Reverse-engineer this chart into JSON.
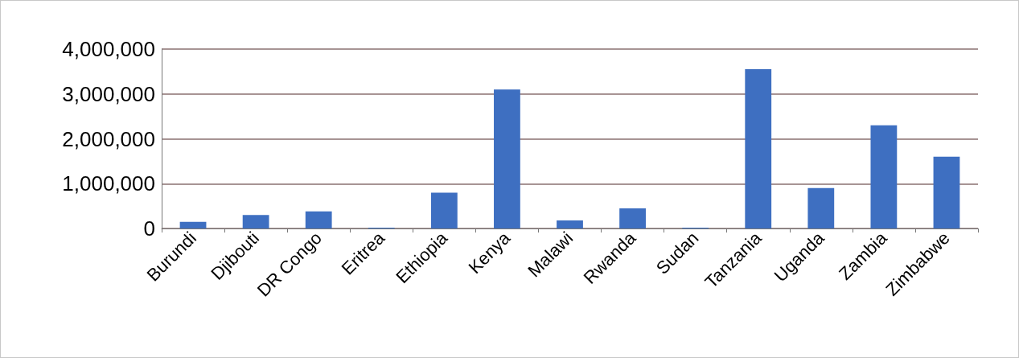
{
  "chart_data": {
    "type": "bar",
    "categories": [
      "Burundi",
      "Djibouti",
      "DR Congo",
      "Eritrea",
      "Ethiopia",
      "Kenya",
      "Malawi",
      "Rwanda",
      "Sudan",
      "Tanzania",
      "Uganda",
      "Zambia",
      "Zimbabwe"
    ],
    "values": [
      150000,
      300000,
      380000,
      20000,
      800000,
      3100000,
      180000,
      450000,
      20000,
      3550000,
      900000,
      2300000,
      1600000
    ],
    "color": "#3e6fc1",
    "ylim": [
      0,
      4000000
    ],
    "yticks": [
      0,
      {
        "value": 1000000,
        "label": "1,000,000"
      },
      {
        "value": 2000000,
        "label": "2,000,000"
      },
      {
        "value": 3000000,
        "label": "3,000,000"
      },
      {
        "value": 4000000,
        "label": "4,000,000"
      }
    ],
    "grid": "y"
  }
}
